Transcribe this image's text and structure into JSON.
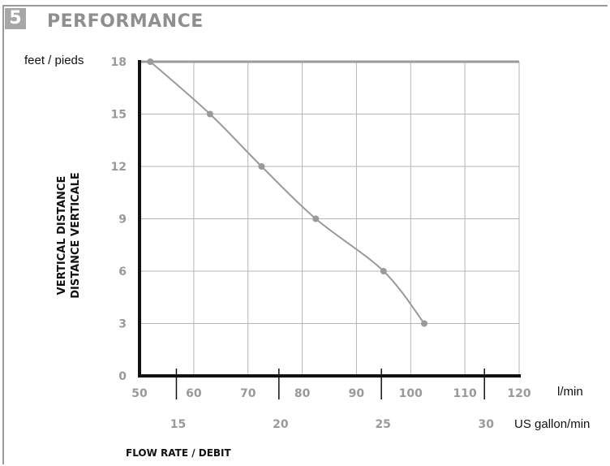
{
  "section": {
    "number": "5",
    "title": "PERFORMANCE"
  },
  "chart_data": {
    "type": "line",
    "y_unit_label": "feet / pieds",
    "ylabel_line1": "VERTICAL DISTANCE",
    "ylabel_line2": "DISTANCE VERTICALE",
    "xlabel": "FLOW RATE / DEBIT",
    "x_unit_primary": "l/min",
    "x_unit_secondary": "US gallon/min",
    "xlim": [
      50,
      120
    ],
    "ylim": [
      0,
      18
    ],
    "x_ticks": [
      "50",
      "60",
      "70",
      "80",
      "90",
      "100",
      "110",
      "120"
    ],
    "y_ticks": [
      "0",
      "3",
      "6",
      "9",
      "12",
      "15",
      "18"
    ],
    "x_ticks_secondary": [
      "15",
      "20",
      "25",
      "30"
    ],
    "secondary_tick_values_lpm": [
      56.8,
      75.7,
      94.6,
      113.6
    ],
    "grid": true,
    "series": [
      {
        "x": [
          52,
          63,
          72.5,
          82.5,
          95,
          102.5
        ],
        "y": [
          18,
          15,
          12,
          9,
          6,
          3
        ],
        "color": "#9a9a9a"
      }
    ]
  }
}
